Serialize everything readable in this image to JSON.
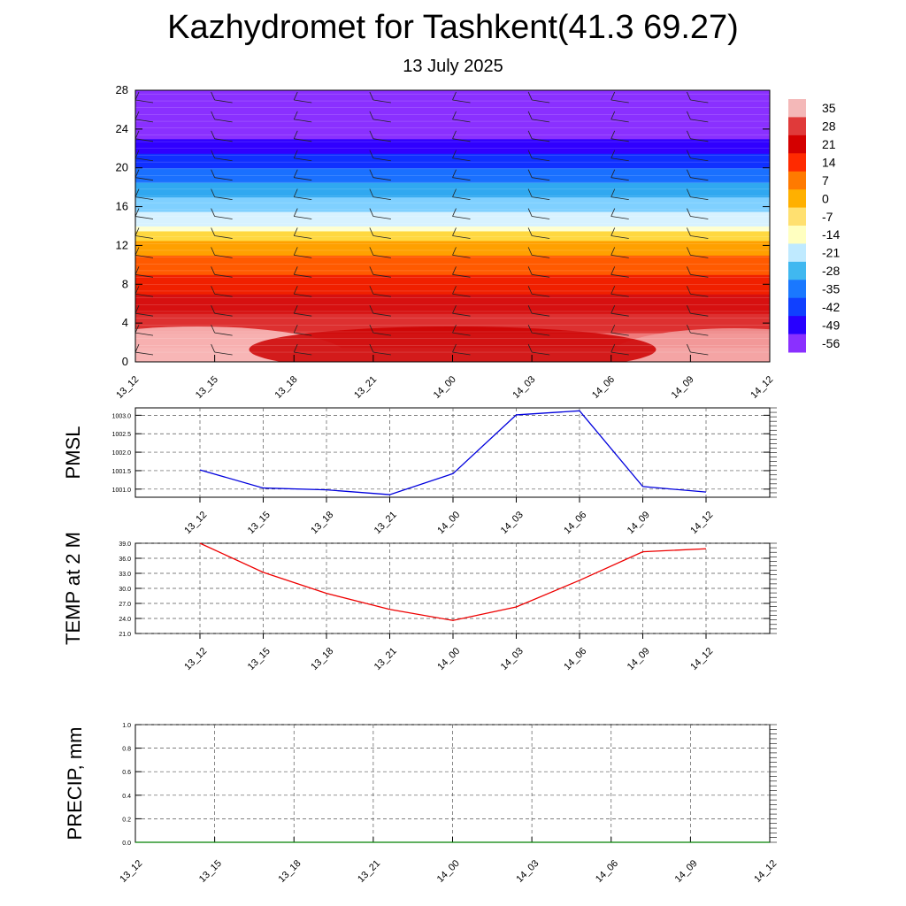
{
  "header": {
    "title": "Kazhydromet for Tashkent(41.3 69.27)",
    "subtitle": "13 July 2025"
  },
  "chart_data": [
    {
      "type": "heatmap",
      "id": "temperature_profile",
      "title": "",
      "x_ticks": [
        "13_12",
        "13_15",
        "13_18",
        "13_21",
        "14_00",
        "14_03",
        "14_06",
        "14_09",
        "14_12"
      ],
      "y_ticks": [
        0,
        4,
        8,
        12,
        16,
        20,
        24,
        28
      ],
      "ylim": [
        0,
        28
      ],
      "colorbar": {
        "labels": [
          "35",
          "28",
          "21",
          "14",
          "7",
          "0",
          "-7",
          "-14",
          "-21",
          "-28",
          "-35",
          "-42",
          "-49",
          "-56"
        ],
        "colors": [
          "#f4b8b8",
          "#e03a3a",
          "#d40000",
          "#ff2a00",
          "#ff7a00",
          "#ffb000",
          "#ffe070",
          "#ffffc0",
          "#bfeaff",
          "#40b8f0",
          "#1a78ff",
          "#1040ff",
          "#2800ff",
          "#8a30ff"
        ]
      },
      "bands": [
        {
          "level": 0,
          "color": "#f7b6b6"
        },
        {
          "level": 1.5,
          "color": "#ef7a7a"
        },
        {
          "level": 3,
          "color": "#dd3030"
        },
        {
          "level": 5,
          "color": "#d61010"
        },
        {
          "level": 7,
          "color": "#f02000"
        },
        {
          "level": 9,
          "color": "#ff5a00"
        },
        {
          "level": 11,
          "color": "#ffa000"
        },
        {
          "level": 12.5,
          "color": "#ffd840"
        },
        {
          "level": 13.5,
          "color": "#ffffd0"
        },
        {
          "level": 14,
          "color": "#d8f2ff"
        },
        {
          "level": 15.5,
          "color": "#7fd0ff"
        },
        {
          "level": 17,
          "color": "#30a8f0"
        },
        {
          "level": 18.5,
          "color": "#1a70ff"
        },
        {
          "level": 20,
          "color": "#1030ff"
        },
        {
          "level": 21.5,
          "color": "#3000ff"
        },
        {
          "level": 23,
          "color": "#8a30ff"
        },
        {
          "level": 28,
          "color": "#8a30ff"
        }
      ],
      "wind_barbs": "present"
    },
    {
      "type": "line",
      "id": "pmsl",
      "ylabel": "PMSL",
      "x": [
        "13_12",
        "13_15",
        "13_18",
        "13_21",
        "14_00",
        "14_03",
        "14_06",
        "14_09",
        "14_12"
      ],
      "values": [
        1001.52,
        1001.03,
        1000.98,
        1000.85,
        1001.42,
        1003.01,
        1003.12,
        1001.07,
        1000.92
      ],
      "ylim": [
        0.8,
        1003.2
      ],
      "y_ticks": [
        "1001.0",
        "1001.5",
        "1002.0",
        "1002.5",
        "1003.0"
      ],
      "y_tick_values": [
        1001.0,
        1001.5,
        1002.0,
        1002.5,
        1003.0
      ],
      "y_range": [
        1000.78,
        1003.2
      ],
      "color": "#0000dd",
      "grid": true
    },
    {
      "type": "line",
      "id": "temp2m",
      "ylabel": "TEMP at 2 M",
      "x": [
        "13_12",
        "13_15",
        "13_18",
        "13_21",
        "14_00",
        "14_03",
        "14_06",
        "14_09",
        "14_12"
      ],
      "values": [
        39.0,
        33.2,
        29.0,
        25.8,
        23.6,
        26.3,
        31.6,
        37.3,
        37.9
      ],
      "y_ticks": [
        "39.0",
        "36.0",
        "33.0",
        "30.0",
        "27.0",
        "24.0",
        "21.0"
      ],
      "y_tick_values": [
        39,
        36,
        33,
        30,
        27,
        24,
        21
      ],
      "y_range": [
        21,
        39
      ],
      "color": "#ee0000",
      "grid": true
    },
    {
      "type": "line",
      "id": "precip",
      "ylabel": "PRECIP, mm",
      "x": [
        "13_12",
        "13_15",
        "13_18",
        "13_21",
        "14_00",
        "14_03",
        "14_06",
        "14_09",
        "14_12"
      ],
      "values": [
        0,
        0,
        0,
        0,
        0,
        0,
        0,
        0,
        0
      ],
      "y_ticks": [
        "1.0",
        "0.8",
        "0.6",
        "0.4",
        "0.2",
        "0.0"
      ],
      "y_tick_values": [
        1.0,
        0.8,
        0.6,
        0.4,
        0.2,
        0.0
      ],
      "y_range": [
        0,
        1
      ],
      "color": "#008000",
      "grid": true
    }
  ]
}
